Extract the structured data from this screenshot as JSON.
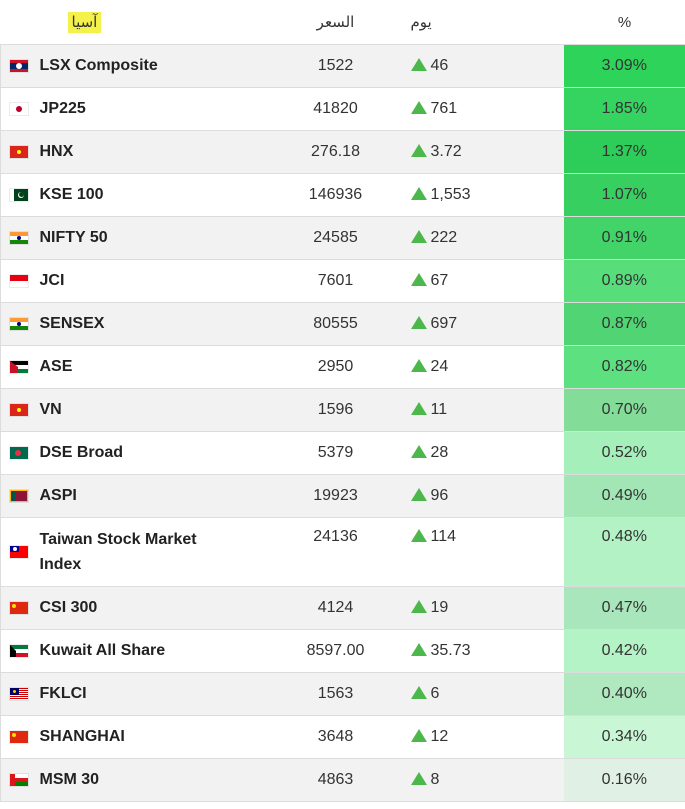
{
  "header": {
    "region": "آسيا",
    "price": "السعر",
    "day": "يوم",
    "pct": "%"
  },
  "colors": {
    "up_arrow": "#4cb84c",
    "highlight": "#f4f14a"
  },
  "rows": [
    {
      "name": "LSX Composite",
      "price": "1522",
      "change": "46",
      "pct": "3.09%",
      "pct_bg": "#2ed35a",
      "flag": "laos-flag-icon"
    },
    {
      "name": "JP225",
      "price": "41820",
      "change": "761",
      "pct": "1.85%",
      "pct_bg": "#35d460",
      "flag": "japan-flag-icon"
    },
    {
      "name": "HNX",
      "price": "276.18",
      "change": "3.72",
      "pct": "1.37%",
      "pct_bg": "#2ecc59",
      "flag": "vietnam-flag-icon"
    },
    {
      "name": "KSE 100",
      "price": "146936",
      "change": "1,553",
      "pct": "1.07%",
      "pct_bg": "#36cf60",
      "flag": "pakistan-flag-icon"
    },
    {
      "name": "NIFTY 50",
      "price": "24585",
      "change": "222",
      "pct": "0.91%",
      "pct_bg": "#42d369",
      "flag": "india-flag-icon"
    },
    {
      "name": "JCI",
      "price": "7601",
      "change": "67",
      "pct": "0.89%",
      "pct_bg": "#57de7b",
      "flag": "indonesia-flag-icon"
    },
    {
      "name": "SENSEX",
      "price": "80555",
      "change": "697",
      "pct": "0.87%",
      "pct_bg": "#51d474",
      "flag": "india-flag-icon"
    },
    {
      "name": "ASE",
      "price": "2950",
      "change": "24",
      "pct": "0.82%",
      "pct_bg": "#5ce080",
      "flag": "jordan-flag-icon"
    },
    {
      "name": "VN",
      "price": "1596",
      "change": "11",
      "pct": "0.70%",
      "pct_bg": "#83dc98",
      "flag": "vietnam-flag-icon"
    },
    {
      "name": "DSE Broad",
      "price": "5379",
      "change": "28",
      "pct": "0.52%",
      "pct_bg": "#a5efbb",
      "flag": "bangladesh-flag-icon"
    },
    {
      "name": "ASPI",
      "price": "19923",
      "change": "96",
      "pct": "0.49%",
      "pct_bg": "#a3e6b6",
      "flag": "srilanka-flag-icon"
    },
    {
      "name_line1": "Taiwan Stock Market",
      "name_line2": "Index",
      "price": "24136",
      "change": "114",
      "pct": "0.48%",
      "pct_bg": "#b2f2c4",
      "flag": "taiwan-flag-icon",
      "tall": true
    },
    {
      "name": "CSI 300",
      "price": "4124",
      "change": "19",
      "pct": "0.47%",
      "pct_bg": "#a9e6bb",
      "flag": "china-flag-icon"
    },
    {
      "name": "Kuwait All Share",
      "price": "8597.00",
      "change": "35.73",
      "pct": "0.42%",
      "pct_bg": "#b3f3c5",
      "flag": "kuwait-flag-icon"
    },
    {
      "name": "FKLCI",
      "price": "1563",
      "change": "6",
      "pct": "0.40%",
      "pct_bg": "#b0e9bf",
      "flag": "malaysia-flag-icon"
    },
    {
      "name": "SHANGHAI",
      "price": "3648",
      "change": "12",
      "pct": "0.34%",
      "pct_bg": "#c9f6d5",
      "flag": "china-flag-icon"
    },
    {
      "name": "MSM 30",
      "price": "4863",
      "change": "8",
      "pct": "0.16%",
      "pct_bg": "#e0f0e4",
      "flag": "oman-flag-icon"
    }
  ]
}
